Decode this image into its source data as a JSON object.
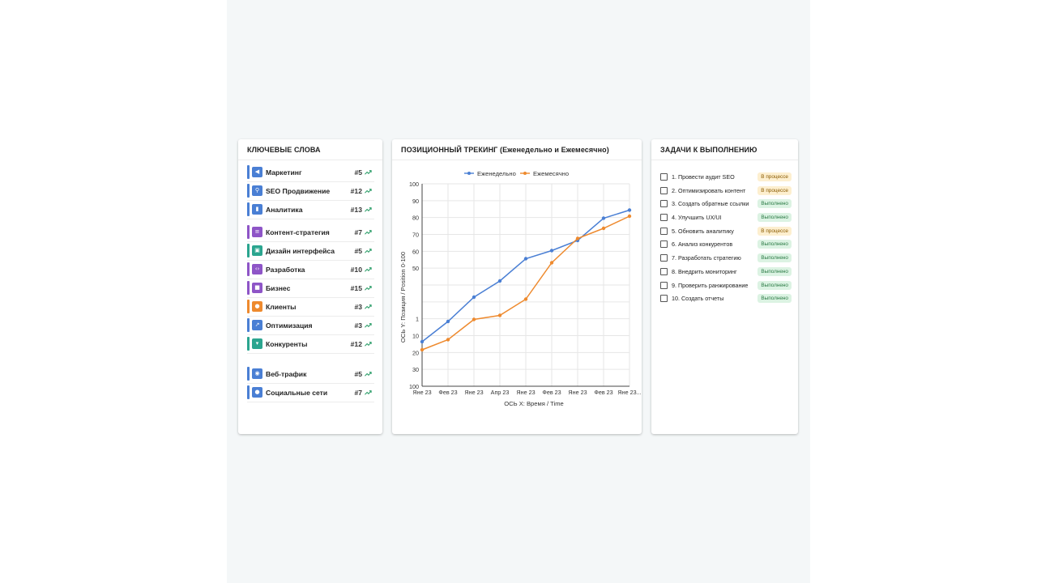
{
  "keywords": {
    "title": "КЛЮЧЕВЫЕ СЛОВА",
    "items": [
      {
        "label": "Маркетинг",
        "rank": "#5",
        "color": "#4a7fd4",
        "icon": "megaphone-icon",
        "glyph": "◀"
      },
      {
        "label": "SEO Продвижение",
        "rank": "#12",
        "color": "#4a7fd4",
        "icon": "search-icon",
        "glyph": "⚲"
      },
      {
        "label": "Аналитика",
        "rank": "#13",
        "color": "#4a7fd4",
        "icon": "bar-chart-icon",
        "glyph": "▮"
      },
      {
        "label": "Контент-стратегия",
        "rank": "#7",
        "color": "#8e55c7",
        "icon": "document-icon",
        "glyph": "≡"
      },
      {
        "label": "Дизайн интерфейса",
        "rank": "#5",
        "color": "#2ba58f",
        "icon": "layout-icon",
        "glyph": "▣"
      },
      {
        "label": "Разработка",
        "rank": "#10",
        "color": "#8e55c7",
        "icon": "code-icon",
        "glyph": "‹›"
      },
      {
        "label": "Бизнес",
        "rank": "#15",
        "color": "#8e55c7",
        "icon": "briefcase-icon",
        "glyph": "■"
      },
      {
        "label": "Клиенты",
        "rank": "#3",
        "color": "#ee8a2e",
        "icon": "people-icon",
        "glyph": "●"
      },
      {
        "label": "Оптимизация",
        "rank": "#3",
        "color": "#4a7fd4",
        "icon": "trending-icon",
        "glyph": "↗"
      },
      {
        "label": "Конкуренты",
        "rank": "#12",
        "color": "#2ba58f",
        "icon": "trophy-icon",
        "glyph": "▾"
      },
      {
        "label": "Веб-трафик",
        "rank": "#5",
        "color": "#4a7fd4",
        "icon": "globe-icon",
        "glyph": "◉"
      },
      {
        "label": "Социальные сети",
        "rank": "#7",
        "color": "#4a7fd4",
        "icon": "group-icon",
        "glyph": "●"
      }
    ],
    "trend_color": "#2e9e6a"
  },
  "chart": {
    "title": "ПОЗИЦИОННЫЙ ТРЕКИНГ (Еженедельно и Ежемесячно)"
  },
  "chart_data": {
    "type": "line",
    "categories": [
      "Яне 23",
      "Фев 23",
      "Яне 23",
      "Апр 23",
      "Яне 23",
      "Фев 23",
      "Яне 23",
      "Фев 23",
      "Яне 23..."
    ],
    "series": [
      {
        "name": "Еженедельно",
        "color": "#4a7fd4",
        "values": [
          22,
          32,
          44,
          52,
          63,
          67,
          72,
          83,
          87
        ]
      },
      {
        "name": "Ежемесячно",
        "color": "#ee8a2e",
        "values": [
          18,
          23,
          33,
          35,
          43,
          61,
          73,
          78,
          84
        ]
      }
    ],
    "xlabel": "ОСЬ X: Время / Time",
    "ylabel": "ОСЬ Y: Позиция / Position 0-100",
    "yticks": [
      "100",
      "90",
      "80",
      "70",
      "60",
      "50",
      "",
      "",
      "1",
      "10",
      "20",
      "30",
      "100"
    ],
    "ylim": [
      0,
      100
    ],
    "grid": true,
    "legend": "top"
  },
  "tasks": {
    "title": "ЗАДАЧИ К ВЫПОЛНЕНИЮ",
    "items": [
      {
        "label": "1. Провести аудит SEO",
        "status": "В процессе",
        "state": "progress"
      },
      {
        "label": "2. Оптимизировать контент",
        "status": "В процессе",
        "state": "progress"
      },
      {
        "label": "3. Создать обратные ссылки",
        "status": "Выполнено",
        "state": "done"
      },
      {
        "label": "4. Улучшить UX/UI",
        "status": "Выполнено",
        "state": "done"
      },
      {
        "label": "5. Обновить аналитику",
        "status": "В процессе",
        "state": "progress"
      },
      {
        "label": "6. Анализ конкурентов",
        "status": "Выполнено",
        "state": "done"
      },
      {
        "label": "7. Разработать стратегию",
        "status": "Выполнено",
        "state": "done"
      },
      {
        "label": "8. Внедрить мониторинг",
        "status": "Выполнено",
        "state": "done"
      },
      {
        "label": "9. Проверить ранжирование",
        "status": "Выполнено",
        "state": "done"
      },
      {
        "label": "10. Создать отчеты",
        "status": "Выполнено",
        "state": "done"
      }
    ],
    "badge_colors": {
      "progress": {
        "bg": "#fdefcf",
        "fg": "#8a5a00"
      },
      "done": {
        "bg": "#dcf3e3",
        "fg": "#2a7a44"
      }
    }
  }
}
